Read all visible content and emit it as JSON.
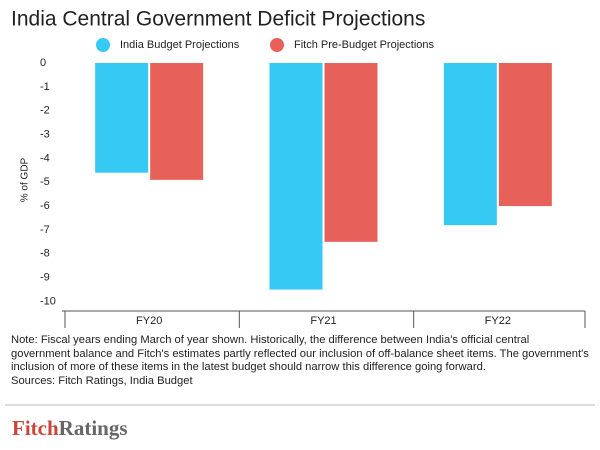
{
  "chart_data": {
    "type": "bar",
    "title": "India Central Government Deficit Projections",
    "y_label": "% of GDP",
    "categories": [
      "FY20",
      "FY21",
      "FY22"
    ],
    "series": [
      {
        "name": "India Budget Projections",
        "color": "#35c9f4",
        "values": [
          -4.6,
          -9.5,
          -6.8
        ]
      },
      {
        "name": "Fitch Pre-Budget Projections",
        "color": "#e8605a",
        "values": [
          -4.9,
          -7.5,
          -6.0
        ]
      }
    ],
    "ylim": [
      -10.4,
      0
    ],
    "yticks": [
      0,
      -1,
      -2,
      -3,
      -4,
      -5,
      -6,
      -7,
      -8,
      -9,
      -10
    ],
    "grid": false,
    "legend": "top"
  },
  "note": "Note: Fiscal years ending March of year shown. Historically, the difference between India's official central government balance and Fitch's estimates partly reflected our inclusion of off-balance sheet items. The government's inclusion of more of these items in the latest budget should narrow this difference going forward.",
  "sources": "Sources: Fitch Ratings, India Budget",
  "logo": {
    "first": "Fitch",
    "second": "Ratings"
  }
}
